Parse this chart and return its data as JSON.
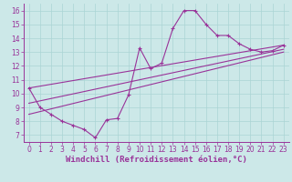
{
  "xlabel": "Windchill (Refroidissement éolien,°C)",
  "background_color": "#cce8e8",
  "line_color": "#993399",
  "xlim": [
    -0.5,
    23.5
  ],
  "ylim": [
    6.5,
    16.5
  ],
  "xticks": [
    0,
    1,
    2,
    3,
    4,
    5,
    6,
    7,
    8,
    9,
    10,
    11,
    12,
    13,
    14,
    15,
    16,
    17,
    18,
    19,
    20,
    21,
    22,
    23
  ],
  "yticks": [
    7,
    8,
    9,
    10,
    11,
    12,
    13,
    14,
    15,
    16
  ],
  "line1_x": [
    0,
    1,
    2,
    3,
    4,
    5,
    6,
    7,
    8,
    9,
    10,
    11,
    12,
    13,
    14,
    15,
    16,
    17,
    18,
    19,
    20,
    21,
    22,
    23
  ],
  "line1_y": [
    10.4,
    9.0,
    8.5,
    8.0,
    7.7,
    7.4,
    6.8,
    8.1,
    8.2,
    9.9,
    13.3,
    11.8,
    12.2,
    14.7,
    16.0,
    16.0,
    15.0,
    14.2,
    14.2,
    13.6,
    13.2,
    13.0,
    13.1,
    13.5
  ],
  "line2_x": [
    0,
    23
  ],
  "line2_y": [
    10.4,
    13.5
  ],
  "line3_x": [
    0,
    23
  ],
  "line3_y": [
    8.5,
    13.0
  ],
  "line4_x": [
    0,
    23
  ],
  "line4_y": [
    9.3,
    13.2
  ],
  "grid_color": "#aad4d4",
  "tick_fontsize": 5.5,
  "xlabel_fontsize": 6.5
}
